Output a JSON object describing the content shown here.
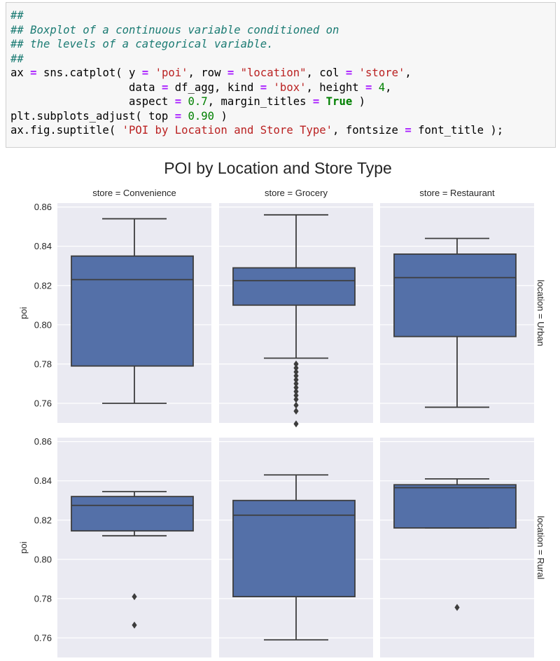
{
  "code_cell": {
    "lines": [
      [
        {
          "t": "##",
          "c": "comment"
        }
      ],
      [
        {
          "t": "## Boxplot of a continuous variable conditioned on",
          "c": "comment"
        }
      ],
      [
        {
          "t": "## the levels of a categorical variable.",
          "c": "comment"
        }
      ],
      [
        {
          "t": "##",
          "c": "comment"
        }
      ],
      [
        {
          "t": "ax ",
          "c": ""
        },
        {
          "t": "=",
          "c": "op"
        },
        {
          "t": " sns.catplot( y ",
          "c": ""
        },
        {
          "t": "=",
          "c": "op"
        },
        {
          "t": " ",
          "c": ""
        },
        {
          "t": "'poi'",
          "c": "str"
        },
        {
          "t": ", row ",
          "c": ""
        },
        {
          "t": "=",
          "c": "op"
        },
        {
          "t": " ",
          "c": ""
        },
        {
          "t": "\"location\"",
          "c": "str"
        },
        {
          "t": ", col ",
          "c": ""
        },
        {
          "t": "=",
          "c": "op"
        },
        {
          "t": " ",
          "c": ""
        },
        {
          "t": "'store'",
          "c": "str"
        },
        {
          "t": ",",
          "c": ""
        }
      ],
      [
        {
          "t": "                  data ",
          "c": ""
        },
        {
          "t": "=",
          "c": "op"
        },
        {
          "t": " df_agg, kind ",
          "c": ""
        },
        {
          "t": "=",
          "c": "op"
        },
        {
          "t": " ",
          "c": ""
        },
        {
          "t": "'box'",
          "c": "str"
        },
        {
          "t": ", height ",
          "c": ""
        },
        {
          "t": "=",
          "c": "op"
        },
        {
          "t": " ",
          "c": ""
        },
        {
          "t": "4",
          "c": "num"
        },
        {
          "t": ",",
          "c": ""
        }
      ],
      [
        {
          "t": "                  aspect ",
          "c": ""
        },
        {
          "t": "=",
          "c": "op"
        },
        {
          "t": " ",
          "c": ""
        },
        {
          "t": "0.7",
          "c": "num"
        },
        {
          "t": ", margin_titles ",
          "c": ""
        },
        {
          "t": "=",
          "c": "op"
        },
        {
          "t": " ",
          "c": ""
        },
        {
          "t": "True",
          "c": "kw"
        },
        {
          "t": " )",
          "c": ""
        }
      ],
      [
        {
          "t": "plt.subplots_adjust( top ",
          "c": ""
        },
        {
          "t": "=",
          "c": "op"
        },
        {
          "t": " ",
          "c": ""
        },
        {
          "t": "0.90",
          "c": "num"
        },
        {
          "t": " )",
          "c": ""
        }
      ],
      [
        {
          "t": "ax.fig.suptitle( ",
          "c": ""
        },
        {
          "t": "'POI by Location and Store Type'",
          "c": "str"
        },
        {
          "t": ", fontsize ",
          "c": ""
        },
        {
          "t": "=",
          "c": "op"
        },
        {
          "t": " font_title );",
          "c": ""
        }
      ]
    ]
  },
  "colors": {
    "box_fill": "#5470a8",
    "line": "#3d3d3d",
    "panel_bg": "#eaeaf2",
    "grid": "#ffffff",
    "text": "#262626",
    "comment": "#1b7b73",
    "operator": "#aa22ff",
    "string": "#ba2121",
    "number": "#008000"
  },
  "chart_data": {
    "type": "box",
    "title": "POI by Location and Store Type",
    "ylabel": "poi",
    "ylim": [
      0.75,
      0.862
    ],
    "yticks": [
      "0.76",
      "0.78",
      "0.80",
      "0.82",
      "0.84",
      "0.86"
    ],
    "ytick_values": [
      0.76,
      0.78,
      0.8,
      0.82,
      0.84,
      0.86
    ],
    "grid": true,
    "col_titles": [
      "store = Convenience",
      "store = Grocery",
      "store = Restaurant"
    ],
    "row_titles": [
      "location = Urban",
      "location = Rural"
    ],
    "panels": [
      {
        "row": 0,
        "col": 0,
        "whislo": 0.76,
        "q1": 0.779,
        "med": 0.823,
        "q3": 0.835,
        "whishi": 0.854,
        "fliers": []
      },
      {
        "row": 0,
        "col": 1,
        "whislo": 0.783,
        "q1": 0.81,
        "med": 0.8225,
        "q3": 0.829,
        "whishi": 0.856,
        "fliers": [
          0.7495,
          0.756,
          0.759,
          0.762,
          0.764,
          0.766,
          0.768,
          0.77,
          0.772,
          0.774,
          0.776,
          0.778,
          0.78
        ]
      },
      {
        "row": 0,
        "col": 2,
        "whislo": 0.758,
        "q1": 0.794,
        "med": 0.824,
        "q3": 0.836,
        "whishi": 0.844,
        "fliers": []
      },
      {
        "row": 1,
        "col": 0,
        "whislo": 0.812,
        "q1": 0.8145,
        "med": 0.8275,
        "q3": 0.832,
        "whishi": 0.8345,
        "fliers": [
          0.7665,
          0.781
        ]
      },
      {
        "row": 1,
        "col": 1,
        "whislo": 0.759,
        "q1": 0.781,
        "med": 0.8225,
        "q3": 0.83,
        "whishi": 0.843,
        "fliers": []
      },
      {
        "row": 1,
        "col": 2,
        "whislo": 0.816,
        "q1": 0.816,
        "med": 0.8365,
        "q3": 0.838,
        "whishi": 0.841,
        "fliers": [
          0.7755
        ]
      }
    ]
  }
}
